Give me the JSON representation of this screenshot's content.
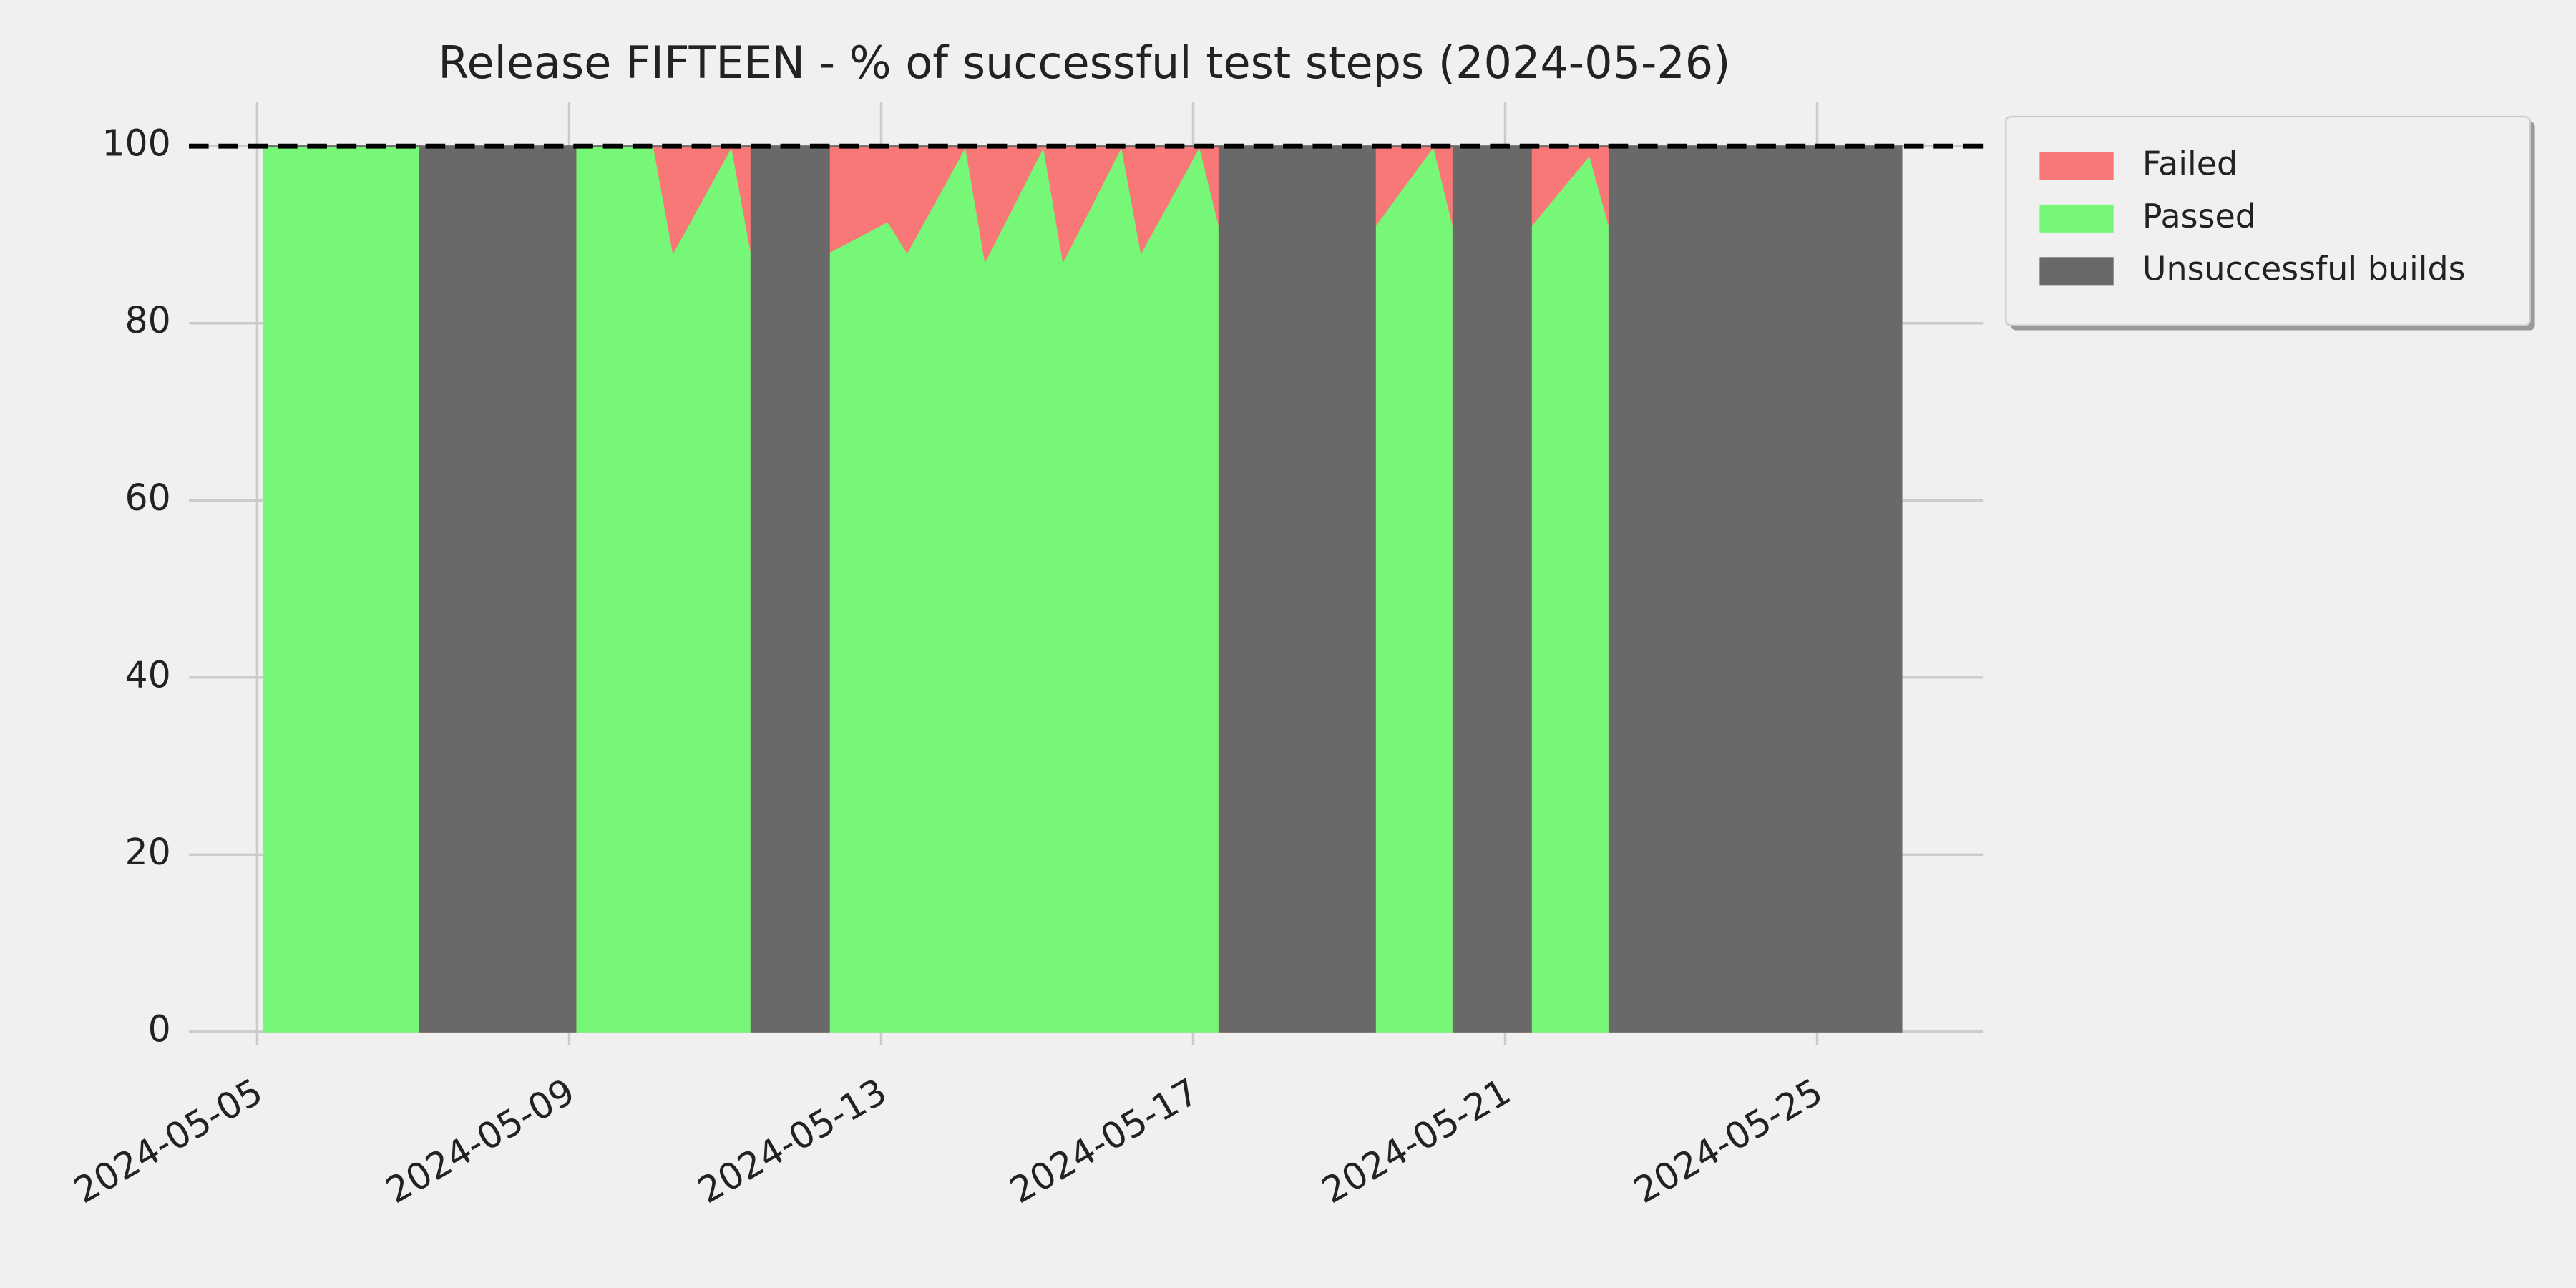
{
  "chart_data": {
    "type": "stacked-area",
    "title": "Release FIFTEEN - % of successful test steps (2024-05-26)",
    "x": [
      "2024-05-05T02:00",
      "2024-05-07T02:00",
      "2024-05-07T02:00",
      "2024-05-09T02:00",
      "2024-05-09T02:00",
      "2024-05-10T02:00",
      "2024-05-10T08:00",
      "2024-05-11T02:00",
      "2024-05-11T08:00",
      "2024-05-11T08:00",
      "2024-05-12T08:00",
      "2024-05-12T08:00",
      "2024-05-13T02:00",
      "2024-05-13T08:00",
      "2024-05-14T02:00",
      "2024-05-14T08:00",
      "2024-05-15T02:00",
      "2024-05-15T08:00",
      "2024-05-16T02:00",
      "2024-05-16T08:00",
      "2024-05-17T02:00",
      "2024-05-17T08:00",
      "2024-05-17T08:00",
      "2024-05-19T08:00",
      "2024-05-19T08:00",
      "2024-05-20T02:00",
      "2024-05-20T08:00",
      "2024-05-20T08:00",
      "2024-05-21T08:00",
      "2024-05-21T08:00",
      "2024-05-22T02:00",
      "2024-05-22T08:00",
      "2024-05-22T08:00",
      "2024-05-26T02:00"
    ],
    "series": [
      {
        "name": "Failed",
        "color": "#f87878",
        "values": [
          0,
          0,
          0,
          0,
          0,
          0,
          12,
          0,
          12,
          0,
          0,
          12,
          8.5,
          12,
          0,
          13,
          0,
          13,
          0,
          12,
          0,
          9,
          0,
          0,
          9,
          0,
          9,
          0,
          0,
          9,
          1,
          9,
          0,
          0
        ]
      },
      {
        "name": "Passed",
        "color": "#77f777",
        "values": [
          100,
          100,
          0,
          0,
          100,
          100,
          88,
          100,
          88,
          0,
          0,
          88,
          91.5,
          88,
          100,
          87,
          100,
          87,
          100,
          88,
          100,
          91,
          0,
          0,
          91,
          100,
          91,
          0,
          0,
          91,
          99,
          91,
          0,
          0
        ]
      },
      {
        "name": "Unsuccessful builds",
        "color": "#696969",
        "values": [
          0,
          0,
          100,
          100,
          0,
          0,
          0,
          0,
          0,
          100,
          100,
          0,
          0,
          0,
          0,
          0,
          0,
          0,
          0,
          0,
          0,
          0,
          100,
          100,
          0,
          0,
          0,
          100,
          100,
          0,
          0,
          0,
          100,
          100
        ]
      }
    ],
    "reference_line": 100,
    "xlim": [
      "2024-05-04T03:00",
      "2024-05-27T03:00"
    ],
    "xticks": [
      "2024-05-05",
      "2024-05-09",
      "2024-05-13",
      "2024-05-17",
      "2024-05-21",
      "2024-05-25"
    ],
    "ylim": [
      0,
      105
    ],
    "yticks": [
      0,
      20,
      40,
      60,
      80,
      100
    ],
    "grid": true,
    "legend": "outside-upper-right"
  }
}
